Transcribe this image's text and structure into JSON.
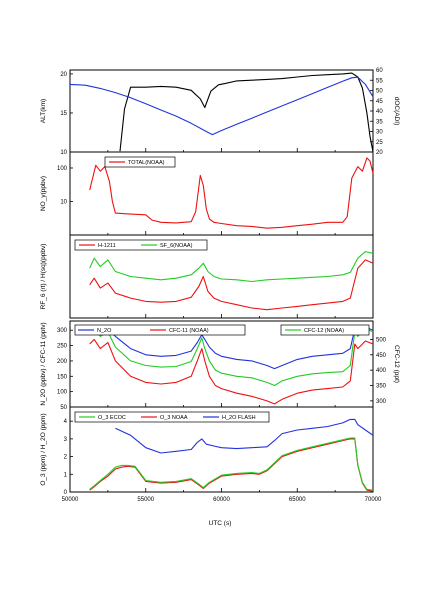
{
  "chart_data": [
    {
      "type": "line",
      "ylabel": "ALT(km)",
      "y2label": "dOC(ADI)",
      "yticks": [
        "10",
        "15",
        "20"
      ],
      "ylim": [
        10,
        20.5
      ],
      "y2ticks": [
        "20",
        "25",
        "30",
        "35",
        "40",
        "45",
        "50",
        "55",
        "60"
      ],
      "y2lim": [
        20,
        60
      ],
      "series": [
        {
          "color": "#000000",
          "axis": "left",
          "x": [
            53300,
            53600,
            54000,
            55000,
            56000,
            57000,
            58000,
            58600,
            58900,
            59300,
            59800,
            60300,
            61000,
            62000,
            63000,
            64000,
            65000,
            66000,
            67000,
            68000,
            68600,
            69000,
            69300,
            69600,
            69800,
            70000
          ],
          "y": [
            10.1,
            15.5,
            18.3,
            18.3,
            18.4,
            18.3,
            17.9,
            16.8,
            15.7,
            17.8,
            18.6,
            18.8,
            19.1,
            19.2,
            19.3,
            19.4,
            19.6,
            19.8,
            19.9,
            20.0,
            20.1,
            19.6,
            18.2,
            15.0,
            12.0,
            10.0
          ]
        },
        {
          "color": "#2233dd",
          "axis": "right",
          "x": [
            50000,
            51000,
            52000,
            53000,
            54000,
            55000,
            56000,
            57000,
            58000,
            59000,
            59400,
            60000,
            61000,
            62000,
            63000,
            64000,
            65000,
            66000,
            67000,
            68000,
            68600,
            69000,
            69500,
            70000
          ],
          "y": [
            53,
            52.6,
            51,
            49,
            46.5,
            43.5,
            40.5,
            37.5,
            34,
            30,
            28.5,
            30.5,
            33.5,
            36.5,
            39.5,
            42.5,
            45.5,
            48.5,
            51.5,
            54.5,
            56.2,
            56.5,
            53,
            47
          ]
        }
      ]
    },
    {
      "type": "line",
      "ylabel": "NO_y(ppbv)",
      "legend": [
        "TOTAL(NOAA)"
      ],
      "yticks": [
        "10",
        "100"
      ],
      "series": [
        {
          "name": "TOTAL(NOAA)",
          "color": "#ee1111",
          "x": [
            51300,
            51700,
            52000,
            52300,
            52600,
            52800,
            53000,
            54000,
            55000,
            55400,
            56000,
            57000,
            58000,
            58300,
            58600,
            58800,
            59000,
            59200,
            59500,
            60000,
            61000,
            62000,
            63000,
            64000,
            65000,
            66000,
            67000,
            68000,
            68300,
            68600,
            69000,
            69300,
            69600,
            69800,
            70000
          ],
          "y": [
            22,
            120,
            80,
            110,
            40,
            10,
            4.5,
            4.2,
            4.0,
            2.8,
            2.4,
            2.3,
            2.5,
            5.0,
            60,
            30,
            6.0,
            3.0,
            2.4,
            2.2,
            1.9,
            1.8,
            1.6,
            1.7,
            1.9,
            2.1,
            2.4,
            2.4,
            3.5,
            50,
            110,
            80,
            200,
            160,
            70
          ]
        }
      ]
    },
    {
      "type": "line",
      "ylabel": "RF_6 (rt) / H(sq)(ppbv)",
      "legend": [
        "H-1211",
        "SF_6(NOAA)"
      ],
      "series": [
        {
          "name": "SF_6(NOAA)",
          "color": "#22cc22",
          "x": [
            51300,
            51600,
            52000,
            52500,
            53000,
            54000,
            55000,
            56000,
            57000,
            58000,
            58500,
            58800,
            59100,
            59500,
            60000,
            61000,
            62000,
            63000,
            64000,
            65000,
            66000,
            67000,
            68000,
            68500,
            69000,
            69500,
            70000
          ],
          "y": [
            0.6,
            0.72,
            0.62,
            0.7,
            0.56,
            0.5,
            0.48,
            0.46,
            0.48,
            0.52,
            0.6,
            0.66,
            0.56,
            0.5,
            0.47,
            0.46,
            0.44,
            0.46,
            0.47,
            0.48,
            0.49,
            0.5,
            0.52,
            0.55,
            0.72,
            0.8,
            0.78
          ]
        },
        {
          "name": "H-1211",
          "color": "#ee1111",
          "x": [
            51300,
            51600,
            52000,
            52500,
            53000,
            54000,
            55000,
            56000,
            57000,
            58000,
            58500,
            58800,
            59100,
            59500,
            60000,
            61000,
            62000,
            63000,
            64000,
            65000,
            66000,
            67000,
            68000,
            68500,
            69000,
            69500,
            70000
          ],
          "y": [
            0.4,
            0.48,
            0.36,
            0.42,
            0.3,
            0.24,
            0.2,
            0.19,
            0.2,
            0.25,
            0.38,
            0.5,
            0.32,
            0.24,
            0.2,
            0.16,
            0.12,
            0.1,
            0.12,
            0.14,
            0.16,
            0.18,
            0.2,
            0.24,
            0.6,
            0.7,
            0.66
          ]
        }
      ]
    },
    {
      "type": "line",
      "ylabel": "N_2O (ppbv) / CFC-11 (pptv)",
      "y2label": "CFC-12 (ppt)",
      "legend": [
        "N_2O",
        "CFC-11 (NOAA)",
        "CFC-12 (NOAA)"
      ],
      "yticks": [
        "50",
        "100",
        "150",
        "200",
        "250",
        "300"
      ],
      "ylim": [
        50,
        330
      ],
      "y2ticks": [
        "300",
        "350",
        "400",
        "450",
        "500"
      ],
      "y2lim": [
        280,
        560
      ],
      "series": [
        {
          "name": "N_2O",
          "color": "#2233dd",
          "x": [
            51300,
            51600,
            52000,
            52500,
            53000,
            54000,
            55000,
            56000,
            57000,
            58000,
            58400,
            58700,
            58900,
            59200,
            59600,
            60000,
            61000,
            62000,
            63000,
            63500,
            64000,
            65000,
            66000,
            67000,
            68000,
            68500,
            68800,
            69000,
            69500,
            70000
          ],
          "y": [
            300,
            310,
            290,
            305,
            280,
            240,
            220,
            215,
            218,
            232,
            260,
            285,
            270,
            245,
            225,
            215,
            205,
            200,
            185,
            175,
            185,
            205,
            215,
            220,
            225,
            240,
            305,
            290,
            310,
            300
          ]
        },
        {
          "name": "CFC-11 (NOAA)",
          "color": "#ee1111",
          "x": [
            51300,
            51600,
            52000,
            52500,
            53000,
            54000,
            55000,
            56000,
            57000,
            58000,
            58400,
            58700,
            58900,
            59200,
            59600,
            60000,
            61000,
            62000,
            63000,
            63500,
            64000,
            65000,
            66000,
            67000,
            68000,
            68500,
            68800,
            69000,
            69500,
            70000
          ],
          "y": [
            255,
            270,
            240,
            260,
            200,
            150,
            130,
            125,
            130,
            150,
            200,
            240,
            200,
            150,
            120,
            110,
            95,
            85,
            70,
            60,
            75,
            95,
            105,
            110,
            115,
            135,
            255,
            240,
            265,
            255
          ]
        },
        {
          "name": "CFC-12 (NOAA)",
          "color": "#22cc22",
          "x": [
            51300,
            51600,
            52000,
            52500,
            53000,
            54000,
            55000,
            56000,
            57000,
            58000,
            58400,
            58700,
            58900,
            59200,
            59600,
            60000,
            61000,
            62000,
            63000,
            63500,
            64000,
            65000,
            66000,
            67000,
            68000,
            68500,
            68800,
            69000,
            69500,
            70000
          ],
          "y": [
            525,
            535,
            510,
            525,
            475,
            430,
            415,
            410,
            412,
            428,
            470,
            505,
            470,
            430,
            400,
            390,
            380,
            375,
            360,
            350,
            365,
            380,
            388,
            392,
            395,
            415,
            525,
            510,
            535,
            525
          ]
        }
      ]
    },
    {
      "type": "line",
      "xlabel": "UTC (s)",
      "ylabel": "O_3 (ppm) / H_2O (ppm)",
      "legend": [
        "O_3 ECOC",
        "O_3 NOAA",
        "H_2O FLASH"
      ],
      "xticks": [
        "50000",
        "55000",
        "60000",
        "65000",
        "70000"
      ],
      "xlim": [
        50000,
        70000
      ],
      "yticks": [
        "0",
        "1",
        "2",
        "3",
        "4"
      ],
      "ylim": [
        0,
        4.8
      ],
      "series": [
        {
          "name": "H_2O FLASH",
          "color": "#2233dd",
          "x": [
            53000,
            54000,
            55000,
            56000,
            57000,
            58000,
            58400,
            58700,
            59000,
            59500,
            60000,
            61000,
            62000,
            63000,
            63500,
            64000,
            65000,
            66000,
            67000,
            68000,
            68500,
            68800,
            69000,
            69500,
            70000
          ],
          "y": [
            3.6,
            3.2,
            2.5,
            2.2,
            2.3,
            2.4,
            2.8,
            3.0,
            2.7,
            2.6,
            2.5,
            2.45,
            2.5,
            2.55,
            2.9,
            3.3,
            3.5,
            3.6,
            3.7,
            3.9,
            4.1,
            4.1,
            3.8,
            3.5,
            3.2
          ]
        },
        {
          "name": "O_3 NOAA",
          "color": "#ee1111",
          "x": [
            51300,
            51600,
            52000,
            52500,
            53000,
            53400,
            53800,
            54300,
            55000,
            56000,
            57000,
            58000,
            58500,
            58800,
            59200,
            60000,
            61000,
            62000,
            62500,
            63000,
            63500,
            64000,
            65000,
            66000,
            67000,
            68000,
            68500,
            68800,
            69000,
            69300,
            69600,
            70000
          ],
          "y": [
            0.1,
            0.3,
            0.6,
            0.9,
            1.3,
            1.4,
            1.45,
            1.4,
            0.6,
            0.5,
            0.55,
            0.7,
            0.4,
            0.2,
            0.5,
            0.9,
            1.0,
            1.05,
            1.0,
            1.2,
            1.6,
            2.0,
            2.3,
            2.5,
            2.7,
            2.9,
            3.0,
            3.0,
            1.5,
            0.5,
            0.1,
            0.05
          ]
        },
        {
          "name": "O_3 ECOC",
          "color": "#22cc22",
          "x": [
            51300,
            51600,
            52000,
            52500,
            53000,
            53400,
            53800,
            54300,
            55000,
            56000,
            57000,
            58000,
            58500,
            58800,
            59200,
            60000,
            61000,
            62000,
            62500,
            63000,
            63500,
            64000,
            65000,
            66000,
            67000,
            68000,
            68500,
            68800,
            69000,
            69300,
            69600,
            70000
          ],
          "y": [
            0.15,
            0.35,
            0.65,
            1.0,
            1.4,
            1.5,
            1.5,
            1.45,
            0.65,
            0.55,
            0.6,
            0.75,
            0.45,
            0.25,
            0.55,
            0.95,
            1.05,
            1.1,
            1.05,
            1.25,
            1.65,
            2.05,
            2.35,
            2.55,
            2.75,
            2.95,
            3.05,
            3.05,
            1.55,
            0.55,
            0.15,
            0.1
          ]
        }
      ]
    }
  ]
}
